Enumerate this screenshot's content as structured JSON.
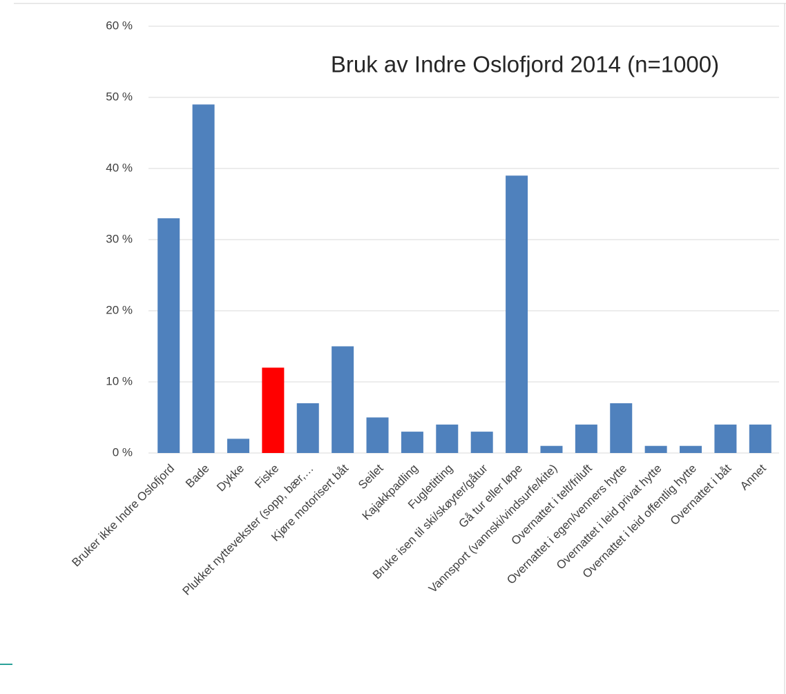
{
  "chart_data": {
    "type": "bar",
    "title": "Bruk av Indre Oslofjord 2014 (n=1000)",
    "categories": [
      "Bruker ikke Indre Oslofjord",
      "Bade",
      "Dykke",
      "Fiske",
      "Plukket nyttevekster (sopp, bær,…",
      "Kjøre motorisert båt",
      "Seilet",
      "Kajakkpadling",
      "Fugletitting",
      "Bruke isen til ski/skøyter/gåtur",
      "Gå tur eller løpe",
      "Vannsport (vannski/vindsurfe/kite)",
      "Overnattet i telt/friluft",
      "Overnattet i egen/venners hytte",
      "Overnattet i leid privat hytte",
      "Overnattet i leid offentlig hytte",
      "Overnattet i båt",
      "Annet"
    ],
    "values": [
      33,
      49,
      2,
      12,
      7,
      15,
      5,
      3,
      4,
      3,
      39,
      1,
      4,
      7,
      1,
      1,
      4,
      4
    ],
    "colors": [
      "#4f81bd",
      "#4f81bd",
      "#4f81bd",
      "#ff0000",
      "#4f81bd",
      "#4f81bd",
      "#4f81bd",
      "#4f81bd",
      "#4f81bd",
      "#4f81bd",
      "#4f81bd",
      "#4f81bd",
      "#4f81bd",
      "#4f81bd",
      "#4f81bd",
      "#4f81bd",
      "#4f81bd",
      "#4f81bd"
    ],
    "ylim": [
      0,
      60
    ],
    "yticks": [
      {
        "value": 0,
        "label": "0 %"
      },
      {
        "value": 10,
        "label": "10 %"
      },
      {
        "value": 20,
        "label": "20 %"
      },
      {
        "value": 30,
        "label": "30 %"
      },
      {
        "value": 40,
        "label": "40 %"
      },
      {
        "value": 50,
        "label": "50 %"
      },
      {
        "value": 60,
        "label": "60 %"
      }
    ],
    "grid": true
  }
}
